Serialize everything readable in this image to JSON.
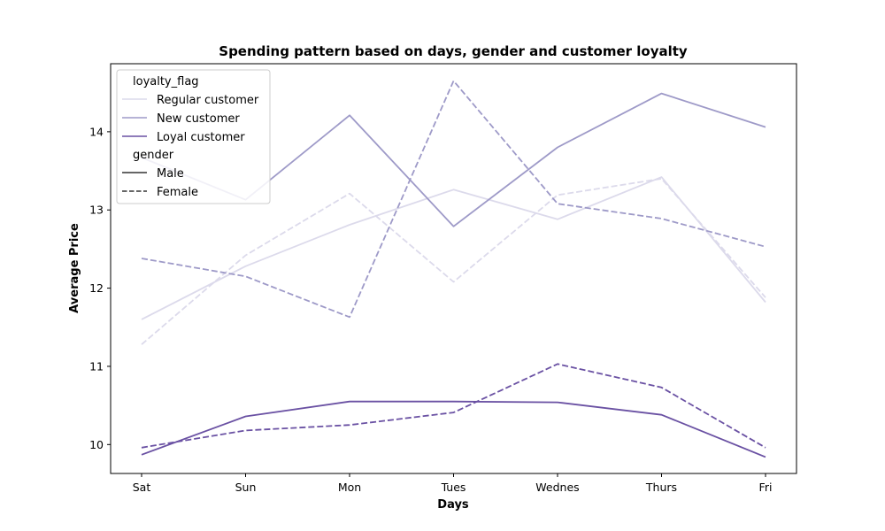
{
  "chart_data": {
    "type": "line",
    "title": "Spending pattern based on days, gender and customer loyalty",
    "xlabel": "Days",
    "ylabel": "Average Price",
    "categories": [
      "Sat",
      "Sun",
      "Mon",
      "Tues",
      "Wednes",
      "Thurs",
      "Fri"
    ],
    "ylim": [
      9.63,
      14.87
    ],
    "yticks": [
      10,
      11,
      12,
      13,
      14
    ],
    "grid": false,
    "legend_position": "top-left",
    "legend": {
      "hue_title": "loyalty_flag",
      "hue_entries": [
        "Regular customer",
        "New customer",
        "Loyal customer"
      ],
      "style_title": "gender",
      "style_entries": [
        "Male",
        "Female"
      ]
    },
    "colors": {
      "Regular customer": "#dcdaeb",
      "New customer": "#9e9ac8",
      "Loyal customer": "#6a51a3"
    },
    "series": [
      {
        "loyalty_flag": "Regular customer",
        "gender": "Male",
        "values": [
          11.6,
          12.28,
          12.81,
          13.26,
          12.88,
          13.42,
          11.82
        ]
      },
      {
        "loyalty_flag": "Regular customer",
        "gender": "Female",
        "values": [
          11.28,
          12.42,
          13.21,
          12.08,
          13.19,
          13.4,
          11.88
        ]
      },
      {
        "loyalty_flag": "New customer",
        "gender": "Male",
        "values": [
          13.67,
          13.13,
          14.21,
          12.79,
          13.8,
          14.49,
          14.06
        ]
      },
      {
        "loyalty_flag": "New customer",
        "gender": "Female",
        "values": [
          12.38,
          12.15,
          11.63,
          14.65,
          13.08,
          12.89,
          12.53
        ]
      },
      {
        "loyalty_flag": "Loyal customer",
        "gender": "Male",
        "values": [
          9.87,
          10.36,
          10.55,
          10.55,
          10.54,
          10.38,
          9.84
        ]
      },
      {
        "loyalty_flag": "Loyal customer",
        "gender": "Female",
        "values": [
          9.96,
          10.18,
          10.25,
          10.41,
          11.03,
          10.73,
          9.96
        ]
      }
    ]
  }
}
